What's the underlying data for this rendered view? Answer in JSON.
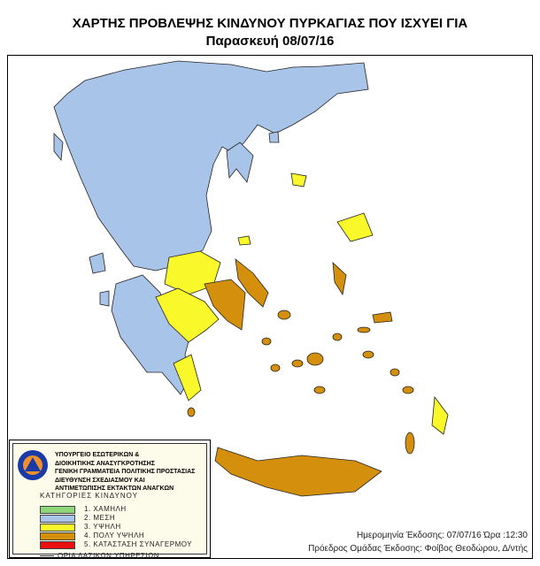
{
  "header": {
    "title": "ΧΑΡΤΗΣ ΠΡΟΒΛΕΨΗΣ ΚΙΝΔΥΝΟΥ ΠΥΡΚΑΓΙΑΣ ΠΟΥ ΙΣΧΥΕΙ ΓΙΑ",
    "date": "Παρασκευή 08/07/16"
  },
  "legend": {
    "organization": [
      "ΥΠΟΥΡΓΕΙΟ ΕΣΩΤΕΡΙΚΩΝ &",
      "ΔΙΟΙΚΗΤΙΚΗΣ ΑΝΑΣΥΓΚΡΟΤΗΣΗΣ",
      "ΓΕΝΙΚΗ ΓΡΑΜΜΑΤΕΙΑ ΠΟΛΙΤΙΚΗΣ ΠΡΟΣΤΑΣΙΑΣ",
      "ΔΙΕΥΘΥΝΣΗ ΣΧΕΔΙΑΣΜΟΥ ΚΑΙ",
      "ΑΝΤΙΜΕΤΩΠΙΣΗΣ ΕΚΤΑΚΤΩΝ ΑΝΑΓΚΩΝ"
    ],
    "logo_text": "ΠΟΛΙΤΙΚΗ ΑΜΥΝΑ ΕΛΛΑΔΑ",
    "categories_title": "ΚΑΤΗΓΟΡΙΕΣ ΚΙΝΔΥΝΟΥ",
    "categories": [
      {
        "label": "1. ΧΑΜΗΛΗ",
        "color": "#8fd67a"
      },
      {
        "label": "2. ΜΕΣΗ",
        "color": "#a8c4e8"
      },
      {
        "label": "3. ΥΨΗΛΗ",
        "color": "#f8f82a"
      },
      {
        "label": "4. ΠΟΛΥ ΥΨΗΛΗ",
        "color": "#d4900c"
      },
      {
        "label": "5. ΚΑΤΑΣΤΑΣΗ ΣΥΝΑΓΕΡΜΟΥ",
        "color": "#e81010"
      }
    ],
    "border_label": "ΟΡΙΑ ΔΑΣΙΚΩΝ ΥΠΗΡΕΣΙΩΝ"
  },
  "footer": {
    "issued": "Ημερομηνία Έκδοσης: 07/07/16  Ώρα :12:30",
    "issuer": "Πρόεδρος Ομάδας Έκδοσης: Φοίβος Θεοδώρου, Δ/ντής"
  },
  "map": {
    "regions_by_level": {
      "2. ΜΕΣΗ": "northern & western mainland, western Peloponnese",
      "3. ΥΨΗΛΗ": "central Greece, NE & SE Peloponnese, Lesvos, Limnos, Rhodes",
      "4. ΠΟΛΥ ΥΨΗΛΗ": "Attica, Evia, Cyclades, Chios, Dodecanese, Crete"
    }
  }
}
